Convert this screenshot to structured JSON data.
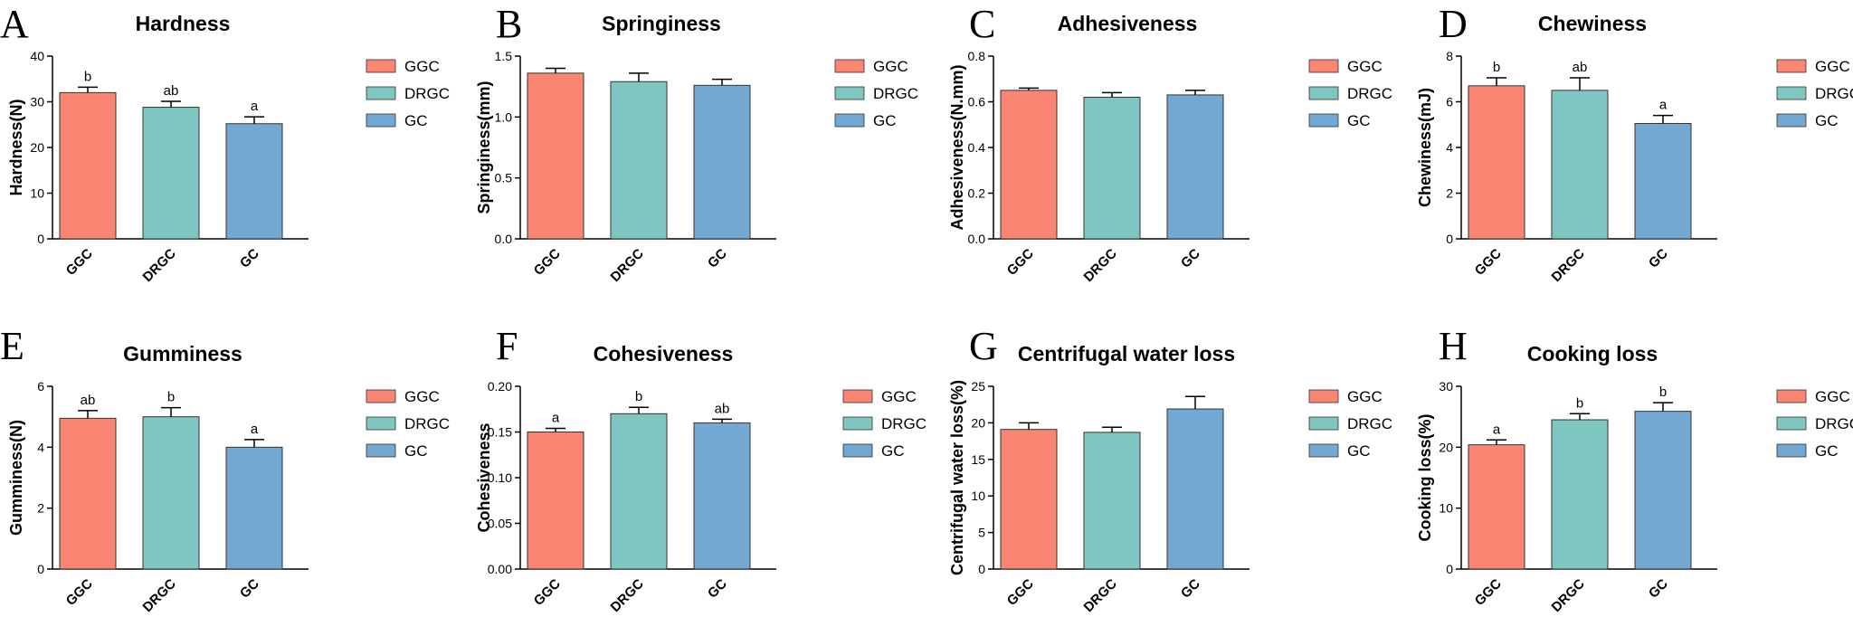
{
  "colors": {
    "GGC": "#FA8572",
    "DRGC": "#7EC6BF",
    "GC": "#73A8D2",
    "axis": "#000000"
  },
  "chart_data": [
    {
      "type": "bar",
      "letter": "A",
      "title": "Hardness",
      "ylabel": "Hardness(N)",
      "categories": [
        "GGC",
        "DRGC",
        "GC"
      ],
      "values": [
        32.0,
        28.8,
        25.2
      ],
      "errors": [
        1.2,
        1.3,
        1.5
      ],
      "significance": [
        "b",
        "ab",
        "a"
      ],
      "ylim": [
        0,
        40
      ],
      "yticks": [
        0,
        10,
        20,
        30,
        40
      ],
      "ytick_labels": [
        "0",
        "10",
        "20",
        "30",
        "40"
      ],
      "legend": [
        "GGC",
        "DRGC",
        "GC"
      ]
    },
    {
      "type": "bar",
      "letter": "B",
      "title": "Springiness",
      "ylabel": "Springiness(mm)",
      "categories": [
        "GGC",
        "DRGC",
        "GC"
      ],
      "values": [
        1.36,
        1.29,
        1.26
      ],
      "errors": [
        0.04,
        0.07,
        0.05
      ],
      "significance": [
        "",
        "",
        ""
      ],
      "ylim": [
        0,
        1.5
      ],
      "yticks": [
        0,
        0.5,
        1.0,
        1.5
      ],
      "ytick_labels": [
        "0.0",
        "0.5",
        "1.0",
        "1.5"
      ],
      "legend": [
        "GGC",
        "DRGC",
        "GC"
      ]
    },
    {
      "type": "bar",
      "letter": "C",
      "title": "Adhesiveness",
      "ylabel": "Adhesiveness(N.mm)",
      "categories": [
        "GGC",
        "DRGC",
        "GC"
      ],
      "values": [
        0.65,
        0.62,
        0.63
      ],
      "errors": [
        0.01,
        0.02,
        0.02
      ],
      "significance": [
        "",
        "",
        ""
      ],
      "ylim": [
        0,
        0.8
      ],
      "yticks": [
        0,
        0.2,
        0.4,
        0.6,
        0.8
      ],
      "ytick_labels": [
        "0.0",
        "0.2",
        "0.4",
        "0.6",
        "0.8"
      ],
      "legend": [
        "GGC",
        "DRGC",
        "GC"
      ]
    },
    {
      "type": "bar",
      "letter": "D",
      "title": "Chewiness",
      "ylabel": "Chewiness(mJ)",
      "categories": [
        "GGC",
        "DRGC",
        "GC"
      ],
      "values": [
        6.7,
        6.5,
        5.05
      ],
      "errors": [
        0.35,
        0.55,
        0.35
      ],
      "significance": [
        "b",
        "ab",
        "a"
      ],
      "ylim": [
        0,
        8
      ],
      "yticks": [
        0,
        2,
        4,
        6,
        8
      ],
      "ytick_labels": [
        "0",
        "2",
        "4",
        "6",
        "8"
      ],
      "legend": [
        "GGC",
        "DRGC",
        "GC"
      ]
    },
    {
      "type": "bar",
      "letter": "E",
      "title": "Gumminess",
      "ylabel": "Gumminess(N)",
      "categories": [
        "GGC",
        "DRGC",
        "GC"
      ],
      "values": [
        4.95,
        5.0,
        4.0
      ],
      "errors": [
        0.25,
        0.3,
        0.25
      ],
      "significance": [
        "ab",
        "b",
        "a"
      ],
      "ylim": [
        0,
        6
      ],
      "yticks": [
        0,
        2,
        4,
        6
      ],
      "ytick_labels": [
        "0",
        "2",
        "4",
        "6"
      ],
      "legend": [
        "GGC",
        "DRGC",
        "GC"
      ]
    },
    {
      "type": "bar",
      "letter": "F",
      "title": "Cohesiveness",
      "ylabel": "Cohesiveness",
      "categories": [
        "GGC",
        "DRGC",
        "GC"
      ],
      "values": [
        0.15,
        0.17,
        0.16
      ],
      "errors": [
        0.004,
        0.007,
        0.004
      ],
      "significance": [
        "a",
        "b",
        "ab"
      ],
      "ylim": [
        0,
        0.2
      ],
      "yticks": [
        0,
        0.05,
        0.1,
        0.15,
        0.2
      ],
      "ytick_labels": [
        "0.00",
        "0.05",
        "0.10",
        "0.15",
        "0.20"
      ],
      "legend": [
        "GGC",
        "DRGC",
        "GC"
      ]
    },
    {
      "type": "bar",
      "letter": "G",
      "title": "Centrifugal water loss",
      "ylabel": "Centrifugal water loss(%)",
      "categories": [
        "GGC",
        "DRGC",
        "GC"
      ],
      "values": [
        19.1,
        18.7,
        21.9
      ],
      "errors": [
        0.9,
        0.7,
        1.7
      ],
      "significance": [
        "",
        "",
        ""
      ],
      "ylim": [
        0,
        25
      ],
      "yticks": [
        0,
        5,
        10,
        15,
        20,
        25
      ],
      "ytick_labels": [
        "0",
        "5",
        "10",
        "15",
        "20",
        "25"
      ],
      "legend": [
        "GGC",
        "DRGC",
        "GC"
      ]
    },
    {
      "type": "bar",
      "letter": "H",
      "title": "Cooking loss",
      "ylabel": "Cooking loss(%)",
      "categories": [
        "GGC",
        "DRGC",
        "GC"
      ],
      "values": [
        20.4,
        24.5,
        25.9
      ],
      "errors": [
        0.8,
        1.0,
        1.4
      ],
      "significance": [
        "a",
        "b",
        "b"
      ],
      "ylim": [
        0,
        30
      ],
      "yticks": [
        0,
        10,
        20,
        30
      ],
      "ytick_labels": [
        "0",
        "10",
        "20",
        "30"
      ],
      "legend": [
        "GGC",
        "DRGC",
        "GC"
      ]
    }
  ]
}
